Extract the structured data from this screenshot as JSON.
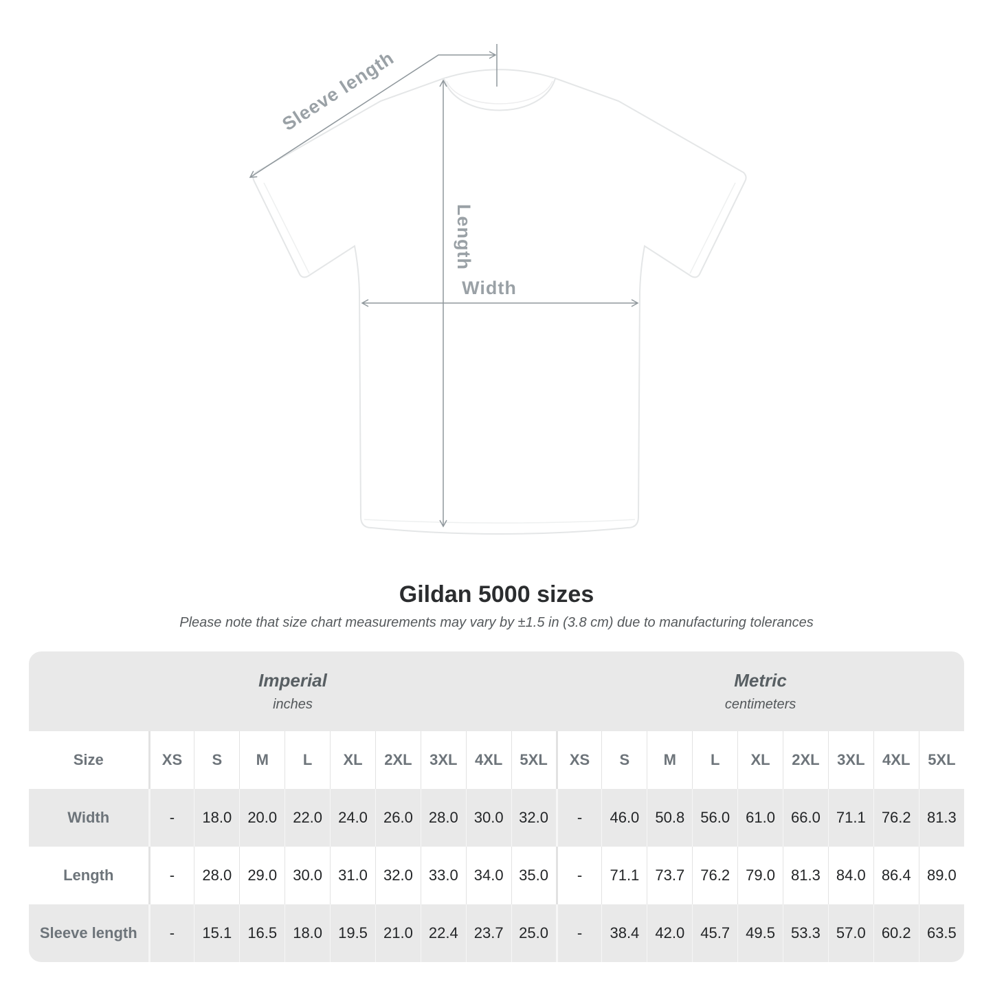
{
  "diagram": {
    "sleeve_length_label": "Sleeve length",
    "length_label": "Length",
    "width_label": "Width"
  },
  "title": "Gildan 5000 sizes",
  "subtitle": "Please note that size chart measurements may vary by ±1.5 in (3.8 cm) due to manufacturing tolerances",
  "size_table": {
    "sections": [
      {
        "name": "Imperial",
        "unit": "inches"
      },
      {
        "name": "Metric",
        "unit": "centimeters"
      }
    ],
    "size_column_label": "Size",
    "sizes": [
      "XS",
      "S",
      "M",
      "L",
      "XL",
      "2XL",
      "3XL",
      "4XL",
      "5XL"
    ],
    "rows": [
      {
        "label": "Width",
        "imperial": [
          "-",
          "18.0",
          "20.0",
          "22.0",
          "24.0",
          "26.0",
          "28.0",
          "30.0",
          "32.0"
        ],
        "metric": [
          "-",
          "46.0",
          "50.8",
          "56.0",
          "61.0",
          "66.0",
          "71.1",
          "76.2",
          "81.3"
        ]
      },
      {
        "label": "Length",
        "imperial": [
          "-",
          "28.0",
          "29.0",
          "30.0",
          "31.0",
          "32.0",
          "33.0",
          "34.0",
          "35.0"
        ],
        "metric": [
          "-",
          "71.1",
          "73.7",
          "76.2",
          "79.0",
          "81.3",
          "84.0",
          "86.4",
          "89.0"
        ]
      },
      {
        "label": "Sleeve length",
        "imperial": [
          "-",
          "15.1",
          "16.5",
          "18.0",
          "19.5",
          "21.0",
          "22.4",
          "23.7",
          "25.0"
        ],
        "metric": [
          "-",
          "38.4",
          "42.0",
          "45.7",
          "49.5",
          "53.3",
          "57.0",
          "60.2",
          "63.5"
        ]
      }
    ]
  },
  "colors": {
    "arrow": "#8f979c",
    "diagram_label": "#9aa1a6",
    "band_gray": "#e9e9e9",
    "header_text": "#6d747a",
    "value_text": "#232527"
  }
}
